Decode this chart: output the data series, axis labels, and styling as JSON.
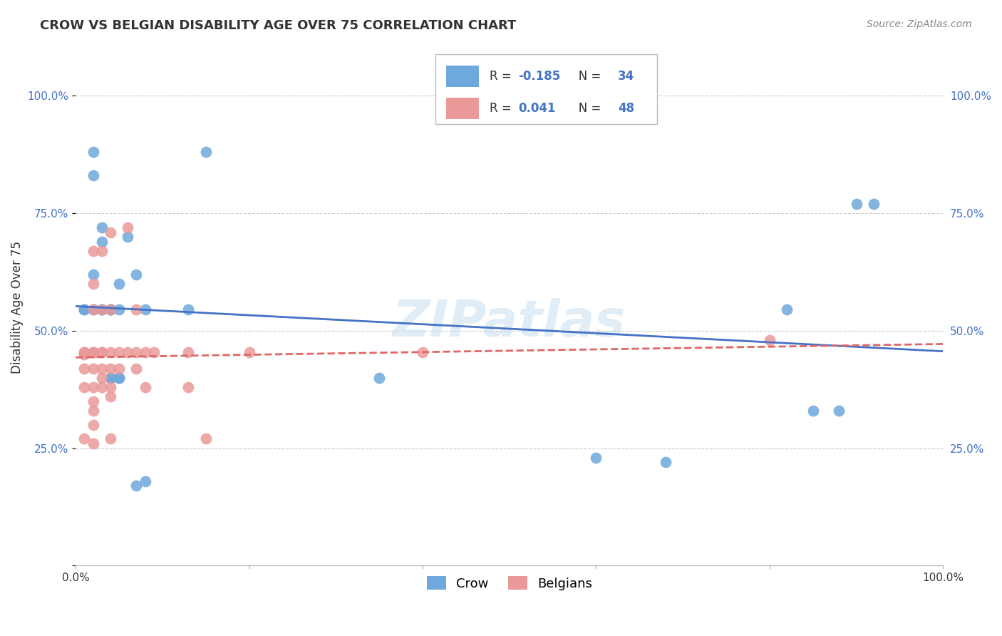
{
  "title": "CROW VS BELGIAN DISABILITY AGE OVER 75 CORRELATION CHART",
  "source": "Source: ZipAtlas.com",
  "ylabel": "Disability Age Over 75",
  "xlim": [
    0.0,
    1.0
  ],
  "ylim": [
    0.0,
    1.1
  ],
  "legend_crow_R": "-0.185",
  "legend_crow_N": "34",
  "legend_belgian_R": "0.041",
  "legend_belgian_N": "48",
  "crow_color": "#6fa8dc",
  "belgian_color": "#ea9999",
  "crow_line_color": "#4472c4",
  "belgian_line_color": "#e06666",
  "watermark": "ZIPatlas",
  "crow_points": [
    [
      0.01,
      0.545
    ],
    [
      0.01,
      0.545
    ],
    [
      0.02,
      0.62
    ],
    [
      0.02,
      0.545
    ],
    [
      0.02,
      0.88
    ],
    [
      0.02,
      0.83
    ],
    [
      0.03,
      0.72
    ],
    [
      0.03,
      0.69
    ],
    [
      0.03,
      0.545
    ],
    [
      0.03,
      0.545
    ],
    [
      0.04,
      0.545
    ],
    [
      0.04,
      0.545
    ],
    [
      0.04,
      0.545
    ],
    [
      0.04,
      0.4
    ],
    [
      0.04,
      0.4
    ],
    [
      0.05,
      0.6
    ],
    [
      0.05,
      0.545
    ],
    [
      0.05,
      0.4
    ],
    [
      0.05,
      0.4
    ],
    [
      0.06,
      0.7
    ],
    [
      0.07,
      0.62
    ],
    [
      0.07,
      0.17
    ],
    [
      0.08,
      0.18
    ],
    [
      0.08,
      0.545
    ],
    [
      0.13,
      0.545
    ],
    [
      0.15,
      0.88
    ],
    [
      0.35,
      0.4
    ],
    [
      0.6,
      0.23
    ],
    [
      0.68,
      0.22
    ],
    [
      0.82,
      0.545
    ],
    [
      0.85,
      0.33
    ],
    [
      0.88,
      0.33
    ],
    [
      0.9,
      0.77
    ],
    [
      0.92,
      0.77
    ]
  ],
  "belgian_points": [
    [
      0.01,
      0.455
    ],
    [
      0.01,
      0.42
    ],
    [
      0.01,
      0.455
    ],
    [
      0.01,
      0.38
    ],
    [
      0.01,
      0.27
    ],
    [
      0.01,
      0.45
    ],
    [
      0.02,
      0.67
    ],
    [
      0.02,
      0.6
    ],
    [
      0.02,
      0.545
    ],
    [
      0.02,
      0.455
    ],
    [
      0.02,
      0.42
    ],
    [
      0.02,
      0.455
    ],
    [
      0.02,
      0.455
    ],
    [
      0.02,
      0.38
    ],
    [
      0.02,
      0.35
    ],
    [
      0.02,
      0.33
    ],
    [
      0.02,
      0.3
    ],
    [
      0.02,
      0.26
    ],
    [
      0.03,
      0.67
    ],
    [
      0.03,
      0.545
    ],
    [
      0.03,
      0.455
    ],
    [
      0.03,
      0.455
    ],
    [
      0.03,
      0.42
    ],
    [
      0.03,
      0.4
    ],
    [
      0.03,
      0.38
    ],
    [
      0.04,
      0.71
    ],
    [
      0.04,
      0.545
    ],
    [
      0.04,
      0.455
    ],
    [
      0.04,
      0.42
    ],
    [
      0.04,
      0.38
    ],
    [
      0.04,
      0.36
    ],
    [
      0.04,
      0.27
    ],
    [
      0.05,
      0.455
    ],
    [
      0.05,
      0.42
    ],
    [
      0.06,
      0.72
    ],
    [
      0.06,
      0.455
    ],
    [
      0.07,
      0.545
    ],
    [
      0.07,
      0.455
    ],
    [
      0.07,
      0.42
    ],
    [
      0.08,
      0.455
    ],
    [
      0.08,
      0.38
    ],
    [
      0.09,
      0.455
    ],
    [
      0.13,
      0.455
    ],
    [
      0.13,
      0.38
    ],
    [
      0.15,
      0.27
    ],
    [
      0.2,
      0.455
    ],
    [
      0.4,
      0.455
    ],
    [
      0.8,
      0.48
    ]
  ]
}
